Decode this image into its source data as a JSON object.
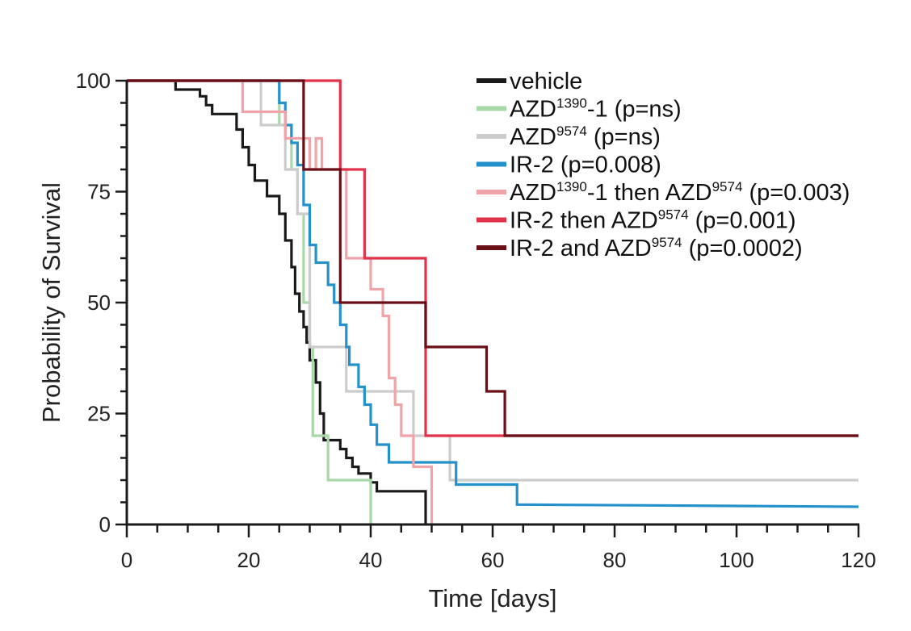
{
  "chart_data": {
    "type": "line",
    "subtype": "kaplan-meier",
    "xlabel": "Time [days]",
    "ylabel": "Probability of Survival",
    "xlim": [
      0,
      120
    ],
    "ylim": [
      0,
      100
    ],
    "xticks": [
      0,
      20,
      40,
      60,
      80,
      100,
      120
    ],
    "yticks": [
      0,
      25,
      50,
      75,
      100
    ],
    "legend_position": "top-right",
    "series": [
      {
        "name": "vehicle",
        "base": "vehicle",
        "sup": "",
        "rest": "",
        "color": "#1a1a1a",
        "points": [
          [
            0,
            100
          ],
          [
            8,
            100
          ],
          [
            8,
            98
          ],
          [
            12,
            98
          ],
          [
            12,
            96.5
          ],
          [
            13,
            96.5
          ],
          [
            13,
            94.5
          ],
          [
            14,
            94.5
          ],
          [
            14,
            92.5
          ],
          [
            18,
            92.5
          ],
          [
            18,
            89
          ],
          [
            19,
            89
          ],
          [
            19,
            85
          ],
          [
            20,
            85
          ],
          [
            20,
            81
          ],
          [
            21,
            81
          ],
          [
            21,
            77.5
          ],
          [
            23,
            77.5
          ],
          [
            23,
            74
          ],
          [
            25,
            74
          ],
          [
            25,
            70
          ],
          [
            26,
            70
          ],
          [
            26,
            64
          ],
          [
            27,
            64
          ],
          [
            27,
            58
          ],
          [
            27.6,
            58
          ],
          [
            27.6,
            52
          ],
          [
            28.3,
            52
          ],
          [
            28.3,
            48
          ],
          [
            29,
            48
          ],
          [
            29,
            44.5
          ],
          [
            29.5,
            44.5
          ],
          [
            29.5,
            41
          ],
          [
            30,
            41
          ],
          [
            30,
            37
          ],
          [
            31,
            37
          ],
          [
            31,
            32
          ],
          [
            31.7,
            32
          ],
          [
            31.7,
            25
          ],
          [
            32.3,
            25
          ],
          [
            32.3,
            19
          ],
          [
            35,
            19
          ],
          [
            35,
            17
          ],
          [
            36,
            17
          ],
          [
            36,
            15
          ],
          [
            37,
            15
          ],
          [
            37,
            13
          ],
          [
            38,
            13
          ],
          [
            38,
            11.5
          ],
          [
            40,
            11.5
          ],
          [
            40,
            9.5
          ],
          [
            41,
            9.5
          ],
          [
            41,
            7.5
          ],
          [
            49,
            7.5
          ],
          [
            49,
            0
          ]
        ]
      },
      {
        "name": "AZD1390-1 (p=ns)",
        "base": "AZD",
        "sup": "1390",
        "rest": "-1 (p=ns)",
        "color": "#a8d8a8",
        "points": [
          [
            0,
            100
          ],
          [
            25,
            100
          ],
          [
            25,
            90
          ],
          [
            27,
            90
          ],
          [
            27,
            80
          ],
          [
            28,
            80
          ],
          [
            28,
            70
          ],
          [
            29,
            70
          ],
          [
            29,
            50
          ],
          [
            30,
            50
          ],
          [
            30,
            40
          ],
          [
            30.5,
            40
          ],
          [
            30.5,
            20
          ],
          [
            33,
            20
          ],
          [
            33,
            10
          ],
          [
            40,
            10
          ],
          [
            40,
            0
          ]
        ]
      },
      {
        "name": "AZD9574 (p=ns)",
        "base": "AZD",
        "sup": "9574",
        "rest": " (p=ns)",
        "color": "#cccccc",
        "points": [
          [
            0,
            100
          ],
          [
            22,
            100
          ],
          [
            22,
            90
          ],
          [
            26,
            90
          ],
          [
            26,
            80
          ],
          [
            28,
            80
          ],
          [
            28,
            70
          ],
          [
            30,
            70
          ],
          [
            30,
            40
          ],
          [
            36,
            40
          ],
          [
            36,
            30
          ],
          [
            47,
            30
          ],
          [
            47,
            20
          ],
          [
            53,
            20
          ],
          [
            53,
            10
          ],
          [
            120,
            10
          ]
        ]
      },
      {
        "name": "IR-2 (p=0.008)",
        "base": "IR-2 (p=0.008)",
        "sup": "",
        "rest": "",
        "color": "#2591cb",
        "points": [
          [
            0,
            100
          ],
          [
            25,
            100
          ],
          [
            25,
            95
          ],
          [
            26,
            95
          ],
          [
            26,
            90
          ],
          [
            27,
            90
          ],
          [
            27,
            86
          ],
          [
            28,
            86
          ],
          [
            28,
            81
          ],
          [
            29,
            81
          ],
          [
            29,
            72
          ],
          [
            30,
            72
          ],
          [
            30,
            63
          ],
          [
            31,
            63
          ],
          [
            31,
            59
          ],
          [
            33,
            59
          ],
          [
            33,
            54
          ],
          [
            34,
            54
          ],
          [
            34,
            50
          ],
          [
            35,
            50
          ],
          [
            35,
            45
          ],
          [
            36,
            45
          ],
          [
            36,
            40
          ],
          [
            36.5,
            40
          ],
          [
            36.5,
            36
          ],
          [
            38,
            36
          ],
          [
            38,
            31
          ],
          [
            39,
            31
          ],
          [
            39,
            27
          ],
          [
            40,
            27
          ],
          [
            40,
            22.5
          ],
          [
            41,
            22.5
          ],
          [
            41,
            18
          ],
          [
            43,
            18
          ],
          [
            43,
            14
          ],
          [
            54,
            14
          ],
          [
            54,
            9
          ],
          [
            64,
            9
          ],
          [
            64,
            4.5
          ],
          [
            120,
            4
          ]
        ]
      },
      {
        "name": "AZD1390-1 then AZD9574 (p=0.003)",
        "base": "AZD",
        "sup": "1390",
        "rest": "-1 then AZD",
        "sup2": "9574",
        "rest2": " (p=0.003)",
        "color": "#f0a3a8",
        "points": [
          [
            0,
            100
          ],
          [
            19,
            100
          ],
          [
            19,
            93
          ],
          [
            26,
            93
          ],
          [
            26,
            87
          ],
          [
            30,
            87
          ],
          [
            30,
            80
          ],
          [
            31,
            80
          ],
          [
            31,
            87
          ],
          [
            32,
            87
          ],
          [
            32,
            80
          ],
          [
            36,
            80
          ],
          [
            36,
            60
          ],
          [
            40,
            60
          ],
          [
            40,
            53
          ],
          [
            42,
            53
          ],
          [
            42,
            47
          ],
          [
            43,
            47
          ],
          [
            43,
            33
          ],
          [
            44,
            33
          ],
          [
            44,
            27
          ],
          [
            45,
            27
          ],
          [
            45,
            20
          ],
          [
            47,
            20
          ],
          [
            47,
            13
          ],
          [
            50,
            13
          ],
          [
            50,
            0
          ]
        ]
      },
      {
        "name": "IR-2 then AZD9574 (p=0.001)",
        "base": "IR-2 then AZD",
        "sup": "9574",
        "rest": " (p=0.001)",
        "color": "#e0324a",
        "points": [
          [
            0,
            100
          ],
          [
            35,
            100
          ],
          [
            35,
            80
          ],
          [
            39,
            80
          ],
          [
            39,
            60
          ],
          [
            49,
            60
          ],
          [
            49,
            20
          ],
          [
            120,
            20
          ]
        ]
      },
      {
        "name": "IR-2 and AZD9574 (p=0.0002)",
        "base": "IR-2 and AZD",
        "sup": "9574",
        "rest": " (p=0.0002)",
        "color": "#6a0e18",
        "points": [
          [
            0,
            100
          ],
          [
            29,
            100
          ],
          [
            29,
            80
          ],
          [
            35,
            80
          ],
          [
            35,
            50
          ],
          [
            49,
            50
          ],
          [
            49,
            40
          ],
          [
            59,
            40
          ],
          [
            59,
            30
          ],
          [
            62,
            30
          ],
          [
            62,
            20
          ],
          [
            120,
            20
          ]
        ]
      }
    ]
  }
}
